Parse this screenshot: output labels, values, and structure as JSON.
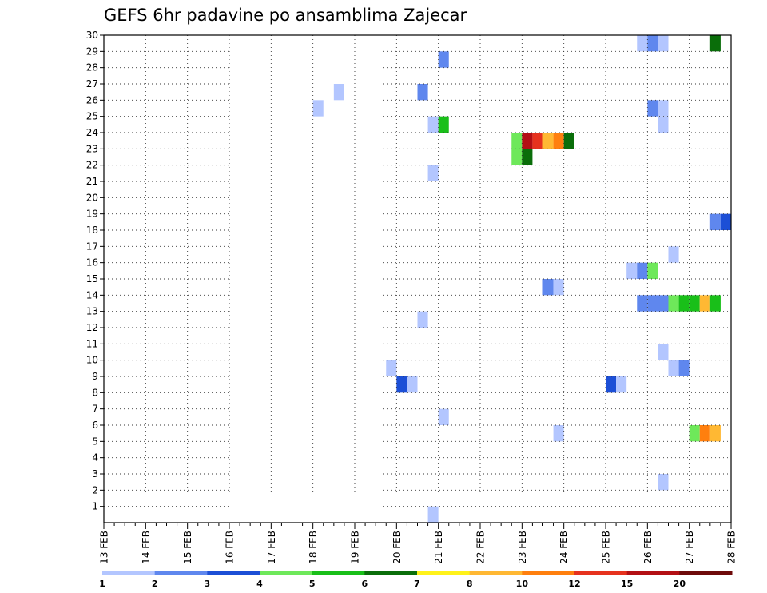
{
  "chart_data": {
    "type": "heatmap",
    "title": "GEFS 6hr padavine po ansamblima Zajecar",
    "x_categories": [
      "13 FEB",
      "14 FEB",
      "15 FEB",
      "16 FEB",
      "17 FEB",
      "18 FEB",
      "19 FEB",
      "20 FEB",
      "21 FEB",
      "22 FEB",
      "23 FEB",
      "24 FEB",
      "25 FEB",
      "26 FEB",
      "27 FEB",
      "28 FEB"
    ],
    "y_ticks": [
      1,
      2,
      3,
      4,
      5,
      6,
      7,
      8,
      9,
      10,
      11,
      12,
      13,
      14,
      15,
      16,
      17,
      18,
      19,
      20,
      21,
      22,
      23,
      24,
      25,
      26,
      27,
      28,
      29,
      30
    ],
    "xlim": [
      0,
      60
    ],
    "ylim": [
      0,
      30
    ],
    "x_step_hours": 6,
    "grid": true,
    "legend": {
      "placement": "bottom",
      "labels": [
        "1",
        "2",
        "3",
        "4",
        "5",
        "6",
        "7",
        "8",
        "10",
        "12",
        "15",
        "20"
      ],
      "colors": [
        "#b3c6ff",
        "#5f87ee",
        "#1c4fd6",
        "#6ee85a",
        "#19bf19",
        "#0a6e0a",
        "#fff21a",
        "#ffb833",
        "#ff7f0e",
        "#e6321e",
        "#b30f14",
        "#6e0a0a"
      ]
    },
    "cells": [
      {
        "member": 30,
        "step": 52,
        "class": 0
      },
      {
        "member": 30,
        "step": 53,
        "class": 1
      },
      {
        "member": 30,
        "step": 54,
        "class": 0
      },
      {
        "member": 30,
        "step": 59,
        "class": 5
      },
      {
        "member": 29,
        "step": 33,
        "class": 1
      },
      {
        "member": 27,
        "step": 23,
        "class": 0
      },
      {
        "member": 27,
        "step": 31,
        "class": 1
      },
      {
        "member": 26,
        "step": 21,
        "class": 0
      },
      {
        "member": 26,
        "step": 53,
        "class": 1
      },
      {
        "member": 26,
        "step": 54,
        "class": 0
      },
      {
        "member": 25,
        "step": 32,
        "class": 0
      },
      {
        "member": 25,
        "step": 33,
        "class": 4
      },
      {
        "member": 25,
        "step": 54,
        "class": 0
      },
      {
        "member": 24,
        "step": 40,
        "class": 3
      },
      {
        "member": 24,
        "step": 41,
        "class": 10
      },
      {
        "member": 24,
        "step": 42,
        "class": 9
      },
      {
        "member": 24,
        "step": 43,
        "class": 7
      },
      {
        "member": 24,
        "step": 44,
        "class": 8
      },
      {
        "member": 24,
        "step": 45,
        "class": 5
      },
      {
        "member": 23,
        "step": 40,
        "class": 3
      },
      {
        "member": 23,
        "step": 41,
        "class": 5
      },
      {
        "member": 22,
        "step": 32,
        "class": 0
      },
      {
        "member": 19,
        "step": 59,
        "class": 1
      },
      {
        "member": 19,
        "step": 60,
        "class": 2
      },
      {
        "member": 17,
        "step": 55,
        "class": 0
      },
      {
        "member": 16,
        "step": 51,
        "class": 0
      },
      {
        "member": 16,
        "step": 52,
        "class": 1
      },
      {
        "member": 16,
        "step": 53,
        "class": 3
      },
      {
        "member": 15,
        "step": 43,
        "class": 1
      },
      {
        "member": 15,
        "step": 44,
        "class": 0
      },
      {
        "member": 14,
        "step": 52,
        "class": 1
      },
      {
        "member": 14,
        "step": 53,
        "class": 1
      },
      {
        "member": 14,
        "step": 54,
        "class": 1
      },
      {
        "member": 14,
        "step": 55,
        "class": 3
      },
      {
        "member": 14,
        "step": 56,
        "class": 4
      },
      {
        "member": 14,
        "step": 57,
        "class": 4
      },
      {
        "member": 14,
        "step": 58,
        "class": 7
      },
      {
        "member": 14,
        "step": 59,
        "class": 4
      },
      {
        "member": 13,
        "step": 31,
        "class": 0
      },
      {
        "member": 11,
        "step": 54,
        "class": 0
      },
      {
        "member": 10,
        "step": 28,
        "class": 0
      },
      {
        "member": 10,
        "step": 55,
        "class": 0
      },
      {
        "member": 10,
        "step": 56,
        "class": 1
      },
      {
        "member": 9,
        "step": 29,
        "class": 2
      },
      {
        "member": 9,
        "step": 30,
        "class": 0
      },
      {
        "member": 9,
        "step": 49,
        "class": 2
      },
      {
        "member": 9,
        "step": 50,
        "class": 0
      },
      {
        "member": 7,
        "step": 33,
        "class": 0
      },
      {
        "member": 6,
        "step": 44,
        "class": 0
      },
      {
        "member": 6,
        "step": 57,
        "class": 3
      },
      {
        "member": 6,
        "step": 58,
        "class": 8
      },
      {
        "member": 6,
        "step": 59,
        "class": 7
      },
      {
        "member": 3,
        "step": 54,
        "class": 0
      },
      {
        "member": 1,
        "step": 32,
        "class": 0
      }
    ]
  }
}
